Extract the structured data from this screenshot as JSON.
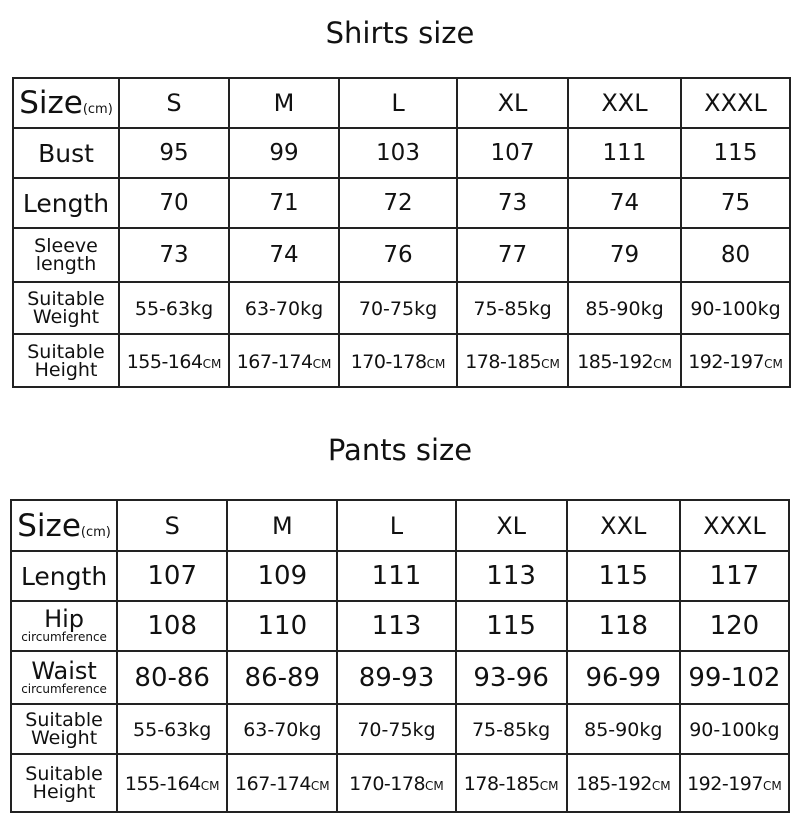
{
  "shirts": {
    "title": "Shirts size",
    "header": {
      "label": "Size",
      "unit": "(cm)",
      "sizes": [
        "S",
        "M",
        "L",
        "XL",
        "XXL",
        "XXXL"
      ]
    },
    "rows": [
      {
        "label": "Bust",
        "values": [
          "95",
          "99",
          "103",
          "107",
          "111",
          "115"
        ]
      },
      {
        "label": "Length",
        "values": [
          "70",
          "71",
          "72",
          "73",
          "74",
          "75"
        ]
      },
      {
        "label_line1": "Sleeve",
        "label_line2": "length",
        "values": [
          "73",
          "74",
          "76",
          "77",
          "79",
          "80"
        ]
      },
      {
        "label_line1": "Suitable",
        "label_line2": "Weight",
        "values": [
          "55-63kg",
          "63-70kg",
          "70-75kg",
          "75-85kg",
          "85-90kg",
          "90-100kg"
        ]
      },
      {
        "label_line1": "Suitable",
        "label_line2": "Height",
        "unit": "CM",
        "values": [
          "155-164",
          "167-174",
          "170-178",
          "178-185",
          "185-192",
          "192-197"
        ]
      }
    ]
  },
  "pants": {
    "title": "Pants size",
    "header": {
      "label": "Size",
      "unit": "(cm)",
      "sizes": [
        "S",
        "M",
        "L",
        "XL",
        "XXL",
        "XXXL"
      ]
    },
    "rows": [
      {
        "label": "Length",
        "values": [
          "107",
          "109",
          "111",
          "113",
          "115",
          "117"
        ]
      },
      {
        "label_line1": "Hip",
        "label_line2": "circumference",
        "values": [
          "108",
          "110",
          "113",
          "115",
          "118",
          "120"
        ]
      },
      {
        "label_line1": "Waist",
        "label_line2": "circumference",
        "values": [
          "80-86",
          "86-89",
          "89-93",
          "93-96",
          "96-99",
          "99-102"
        ]
      },
      {
        "label_line1": "Suitable",
        "label_line2": "Weight",
        "values": [
          "55-63kg",
          "63-70kg",
          "70-75kg",
          "75-85kg",
          "85-90kg",
          "90-100kg"
        ]
      },
      {
        "label_line1": "Suitable",
        "label_line2": "Height",
        "unit": "CM",
        "values": [
          "155-164",
          "167-174",
          "170-178",
          "178-185",
          "185-192",
          "192-197"
        ]
      }
    ]
  }
}
